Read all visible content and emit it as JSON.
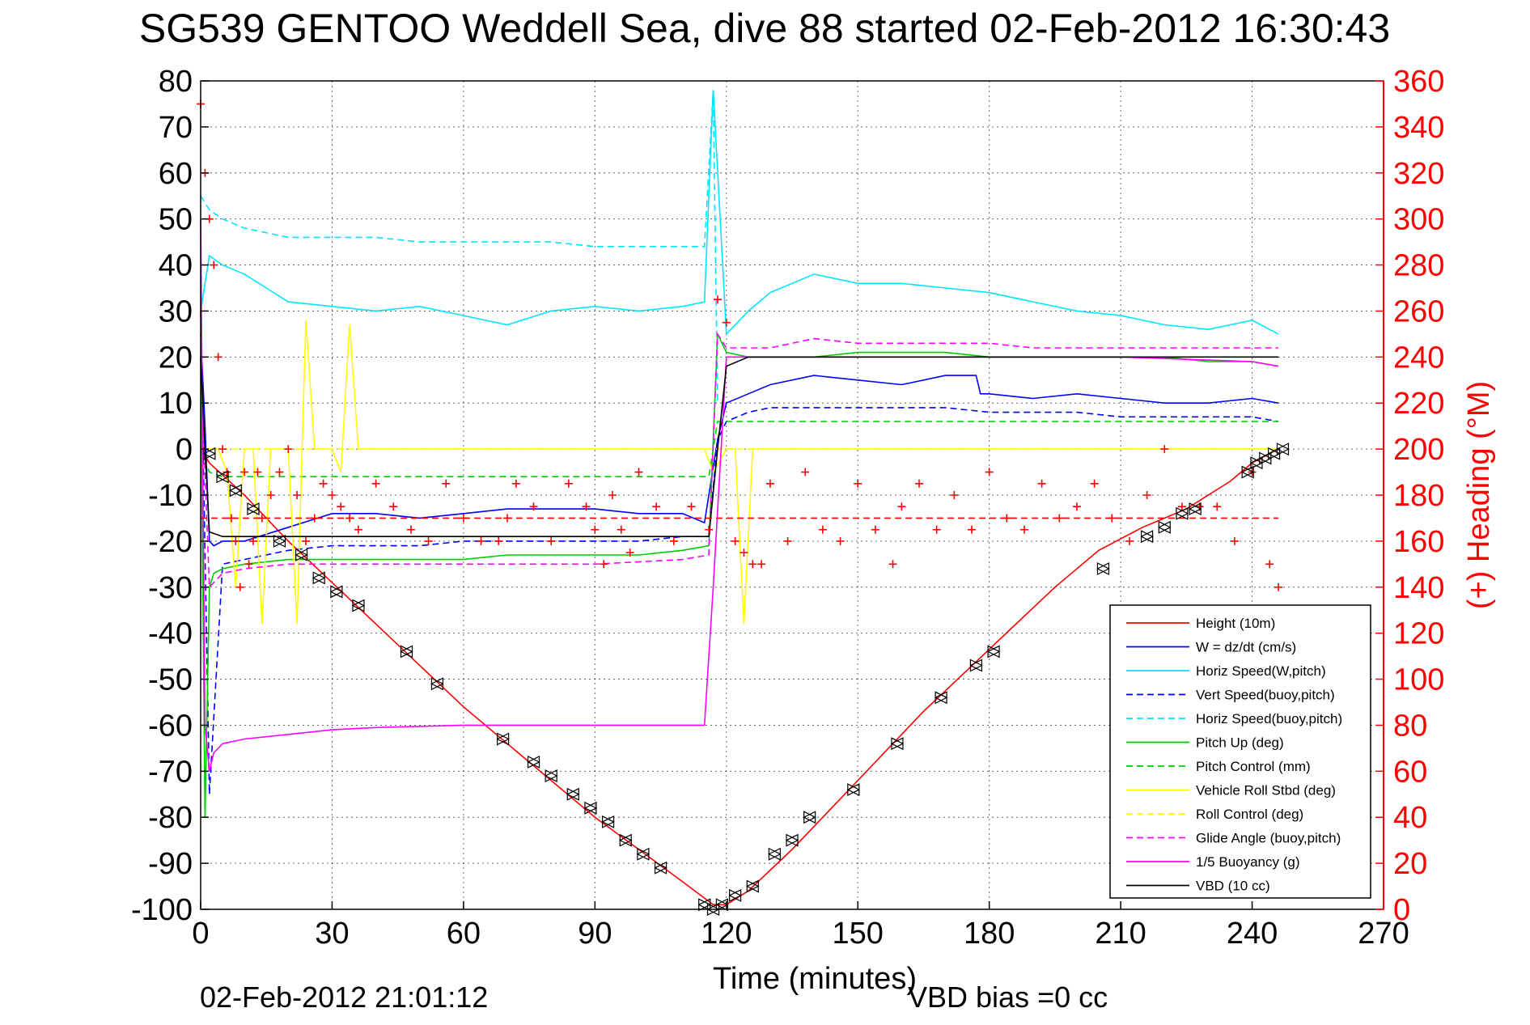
{
  "chart_data": {
    "type": "line",
    "title": "SG539 GENTOO Weddell Sea, dive 88 started 02-Feb-2012 16:30:43",
    "xlabel": "Time (minutes)",
    "ylabel_right": "(+) Heading (°M)",
    "footer_left": "02-Feb-2012 21:01:12",
    "footer_right": "VBD bias =0 cc",
    "xlim": [
      0,
      270
    ],
    "ylim": [
      -100,
      80
    ],
    "ylim_right": [
      0,
      360
    ],
    "xticks": [
      0,
      30,
      60,
      90,
      120,
      150,
      180,
      210,
      240,
      270
    ],
    "yticks": [
      -100,
      -90,
      -80,
      -70,
      -60,
      -50,
      -40,
      -30,
      -20,
      -10,
      0,
      10,
      20,
      30,
      40,
      50,
      60,
      70,
      80
    ],
    "yticks_right": [
      0,
      20,
      40,
      60,
      80,
      100,
      120,
      140,
      160,
      180,
      200,
      220,
      240,
      260,
      280,
      300,
      320,
      340,
      360
    ],
    "grid": true,
    "legend_position": "bottom-right",
    "right_axis_color": "#ff0000",
    "series": [
      {
        "name": "Height (10m)",
        "color": "#ff0000",
        "style": "solid",
        "axis": "left",
        "x": [
          0,
          2,
          10,
          20,
          30,
          40,
          50,
          60,
          70,
          80,
          90,
          100,
          110,
          117,
          120,
          125,
          135,
          145,
          155,
          165,
          175,
          185,
          195,
          205,
          215,
          225,
          235,
          240,
          246
        ],
        "y": [
          0,
          -3,
          -10,
          -20,
          -29,
          -38,
          -47,
          -56,
          -64,
          -72,
          -80,
          -87,
          -94,
          -99,
          -99,
          -96,
          -87,
          -77,
          -67,
          -57,
          -48,
          -39,
          -30,
          -22,
          -17,
          -13,
          -7,
          -3,
          0
        ]
      },
      {
        "name": "W = dz/dt (cm/s)",
        "color": "#0000ff",
        "style": "solid",
        "axis": "left",
        "x": [
          0,
          1,
          2,
          3,
          5,
          10,
          20,
          30,
          40,
          50,
          60,
          70,
          80,
          90,
          100,
          110,
          115,
          118,
          120,
          125,
          130,
          140,
          150,
          160,
          170,
          177,
          178,
          180,
          190,
          200,
          210,
          220,
          230,
          240,
          246
        ],
        "y": [
          25,
          5,
          -20,
          -21,
          -20,
          -20,
          -17,
          -14,
          -14,
          -15,
          -14,
          -13,
          -13,
          -13,
          -14,
          -14,
          -16,
          2,
          10,
          12,
          14,
          16,
          15,
          14,
          16,
          16,
          12,
          12,
          11,
          12,
          11,
          10,
          10,
          11,
          10
        ]
      },
      {
        "name": "Horiz Speed(W,pitch)",
        "color": "#00e5ff",
        "style": "solid",
        "axis": "left",
        "x": [
          0,
          2,
          5,
          10,
          15,
          20,
          30,
          40,
          50,
          60,
          70,
          80,
          90,
          100,
          110,
          115,
          117,
          120,
          125,
          130,
          140,
          150,
          160,
          170,
          180,
          190,
          200,
          210,
          220,
          230,
          240,
          246
        ],
        "y": [
          30,
          42,
          40,
          38,
          35,
          32,
          31,
          30,
          31,
          29,
          27,
          30,
          31,
          30,
          31,
          32,
          78,
          25,
          30,
          34,
          38,
          36,
          36,
          35,
          34,
          32,
          30,
          29,
          27,
          26,
          28,
          25
        ]
      },
      {
        "name": "Vert Speed(buoy,pitch)",
        "color": "#0000ff",
        "style": "dashed",
        "axis": "left",
        "x": [
          0,
          2,
          5,
          10,
          20,
          30,
          40,
          50,
          60,
          70,
          80,
          90,
          100,
          110,
          116,
          118,
          120,
          125,
          130,
          140,
          150,
          160,
          170,
          180,
          190,
          200,
          210,
          220,
          230,
          240,
          246
        ],
        "y": [
          30,
          -75,
          -25,
          -24,
          -22,
          -21,
          -21,
          -21,
          -20,
          -20,
          -20,
          -20,
          -20,
          -19,
          -19,
          2,
          6,
          8,
          9,
          9,
          9,
          9,
          9,
          8,
          8,
          8,
          7,
          7,
          7,
          7,
          6
        ]
      },
      {
        "name": "Horiz Speed(buoy,pitch)",
        "color": "#00e5ff",
        "style": "dashed",
        "axis": "left",
        "x": [
          0,
          2,
          5,
          10,
          20,
          30,
          40,
          50,
          60,
          70,
          80,
          90,
          100,
          110,
          115,
          117,
          118
        ],
        "y": [
          55,
          52,
          50,
          48,
          46,
          46,
          46,
          45,
          45,
          45,
          45,
          44,
          44,
          44,
          44,
          78,
          10
        ]
      },
      {
        "name": "Pitch Up (deg)",
        "color": "#00cc00",
        "style": "solid",
        "axis": "left",
        "x": [
          0,
          1,
          2,
          3,
          5,
          10,
          20,
          30,
          40,
          50,
          60,
          70,
          80,
          90,
          100,
          110,
          116,
          118,
          120,
          125,
          130,
          140,
          150,
          160,
          170,
          180,
          190,
          200,
          210,
          220,
          230,
          240,
          246
        ],
        "y": [
          20,
          -80,
          -30,
          -27,
          -26,
          -25,
          -24,
          -24,
          -24,
          -24,
          -24,
          -23,
          -23,
          -23,
          -23,
          -22,
          -21,
          25,
          21,
          20,
          20,
          20,
          21,
          21,
          21,
          20,
          20,
          20,
          20,
          20,
          19,
          19,
          18
        ]
      },
      {
        "name": "Pitch Control (mm)",
        "color": "#00cc00",
        "style": "dashed",
        "axis": "left",
        "x": [
          0,
          2,
          5,
          10,
          20,
          30,
          60,
          90,
          116,
          118,
          125,
          140,
          170,
          200,
          230,
          246
        ],
        "y": [
          0,
          -5,
          -6,
          -6,
          -6,
          -6,
          -6,
          -6,
          -6,
          6,
          6,
          6,
          6,
          6,
          6,
          6
        ]
      },
      {
        "name": "Vehicle Roll Stbd (deg)",
        "color": "#ffff00",
        "style": "solid",
        "axis": "left",
        "x": [
          0,
          2,
          4,
          6,
          8,
          10,
          12,
          14,
          16,
          18,
          20,
          22,
          24,
          26,
          28,
          30,
          32,
          34,
          36,
          38,
          40,
          50,
          60,
          70,
          80,
          90,
          100,
          110,
          115,
          117,
          120,
          122,
          124,
          126,
          130,
          150,
          170,
          175,
          180,
          200,
          220,
          240,
          246
        ],
        "y": [
          0,
          0,
          0,
          -5,
          -30,
          0,
          0,
          -38,
          0,
          0,
          0,
          -38,
          28,
          0,
          0,
          0,
          -5,
          27,
          0,
          0,
          0,
          0,
          0,
          0,
          0,
          0,
          0,
          0,
          0,
          -5,
          0,
          0,
          -38,
          0,
          0,
          0,
          0,
          0,
          0,
          0,
          0,
          0,
          0
        ]
      },
      {
        "name": "Roll Control (deg)",
        "color": "#ffff00",
        "style": "dashed",
        "axis": "left",
        "x": [
          0,
          20,
          40,
          60,
          80,
          100,
          117,
          120,
          140,
          160,
          180,
          200,
          220,
          240,
          246
        ],
        "y": [
          0,
          0,
          0,
          0,
          0,
          0,
          0,
          0,
          0,
          0,
          0,
          0,
          0,
          0,
          0
        ]
      },
      {
        "name": "Glide Angle (buoy,pitch)",
        "color": "#ff00ff",
        "style": "dashed",
        "axis": "left",
        "x": [
          0,
          2,
          5,
          10,
          20,
          30,
          50,
          70,
          90,
          110,
          116,
          118,
          120,
          125,
          130,
          140,
          150,
          160,
          170,
          180,
          190,
          200,
          210,
          220,
          230,
          240,
          246
        ],
        "y": [
          20,
          -30,
          -27,
          -26,
          -25,
          -25,
          -25,
          -25,
          -25,
          -24,
          -23,
          25,
          22,
          22,
          22,
          24,
          23,
          23,
          23,
          23,
          22,
          22,
          22,
          22,
          22,
          22,
          22
        ]
      },
      {
        "name": "1/5 Buoyancy (g)",
        "color": "#ff00ff",
        "style": "solid",
        "axis": "left",
        "x": [
          0,
          1,
          2,
          3,
          5,
          10,
          20,
          30,
          40,
          60,
          80,
          100,
          115,
          117,
          120,
          125,
          150,
          180,
          210,
          240,
          246
        ],
        "y": [
          50,
          -60,
          -70,
          -66,
          -64,
          -63,
          -62,
          -61,
          -60.5,
          -60,
          -60,
          -60,
          -60,
          -30,
          20,
          20,
          20,
          20,
          20,
          19,
          18
        ]
      },
      {
        "name": "VBD (10 cc)",
        "color": "#000000",
        "style": "solid",
        "axis": "left",
        "x": [
          0,
          1,
          2,
          5,
          10,
          20,
          30,
          60,
          90,
          110,
          116,
          118,
          120,
          125,
          150,
          180,
          210,
          240,
          246
        ],
        "y": [
          20,
          0,
          -18,
          -19,
          -19,
          -19,
          -19,
          -19,
          -19,
          -19,
          -19,
          0,
          18,
          20,
          20,
          20,
          20,
          20,
          20
        ]
      },
      {
        "name": "Heading (deg)",
        "color": "#ff0000",
        "style": "markers-plus",
        "axis": "right",
        "x": [
          0,
          1,
          2,
          3,
          4,
          5,
          6,
          7,
          8,
          9,
          10,
          11,
          12,
          13,
          14,
          16,
          18,
          20,
          22,
          24,
          26,
          28,
          30,
          32,
          34,
          36,
          40,
          44,
          48,
          52,
          56,
          60,
          64,
          68,
          70,
          72,
          76,
          80,
          84,
          88,
          90,
          92,
          94,
          96,
          98,
          100,
          104,
          108,
          112,
          116,
          118,
          120,
          122,
          124,
          126,
          128,
          130,
          134,
          138,
          142,
          146,
          150,
          154,
          158,
          160,
          164,
          168,
          172,
          176,
          180,
          184,
          188,
          192,
          196,
          200,
          204,
          208,
          212,
          216,
          220,
          224,
          228,
          232,
          236,
          240,
          244,
          246
        ],
        "y": [
          350,
          320,
          300,
          280,
          240,
          200,
          190,
          170,
          160,
          140,
          190,
          150,
          160,
          190,
          170,
          180,
          190,
          200,
          180,
          160,
          170,
          185,
          180,
          175,
          170,
          165,
          185,
          175,
          165,
          160,
          185,
          170,
          160,
          160,
          170,
          185,
          175,
          160,
          185,
          175,
          165,
          150,
          180,
          165,
          155,
          190,
          175,
          160,
          175,
          165,
          265,
          255,
          160,
          155,
          150,
          150,
          185,
          160,
          190,
          165,
          160,
          185,
          165,
          150,
          175,
          185,
          165,
          180,
          165,
          190,
          170,
          165,
          185,
          170,
          175,
          185,
          170,
          160,
          180,
          200,
          175,
          175,
          175,
          160,
          190,
          150,
          140
        ]
      },
      {
        "name": "Heading target",
        "color": "#ff0000",
        "style": "dashed",
        "axis": "right",
        "x": [
          0,
          246
        ],
        "y": [
          170,
          170
        ]
      },
      {
        "name": "Depth markers",
        "color": "#000000",
        "style": "markers-triangle",
        "axis": "left",
        "x": [
          2,
          5,
          8,
          12,
          18,
          23,
          27,
          31,
          36,
          47,
          54,
          69,
          76,
          80,
          85,
          89,
          93,
          97,
          101,
          105,
          115,
          117,
          119,
          122,
          126,
          131,
          135,
          139,
          149,
          159,
          169,
          177,
          181,
          206,
          216,
          220,
          224,
          227,
          239,
          241,
          243,
          245,
          247
        ],
        "y": [
          -1,
          -6,
          -9,
          -13,
          -20,
          -23,
          -28,
          -31,
          -34,
          -44,
          -51,
          -63,
          -68,
          -71,
          -75,
          -78,
          -81,
          -85,
          -88,
          -91,
          -99,
          -100,
          -99,
          -97,
          -95,
          -88,
          -85,
          -80,
          -74,
          -64,
          -54,
          -47,
          -44,
          -26,
          -19,
          -17,
          -14,
          -13,
          -5,
          -3,
          -2,
          -1,
          0
        ]
      }
    ],
    "legend": [
      {
        "label": "Height (10m)",
        "color": "#ff0000",
        "style": "solid"
      },
      {
        "label": "W = dz/dt (cm/s)",
        "color": "#0000ff",
        "style": "solid"
      },
      {
        "label": "Horiz Speed(W,pitch)",
        "color": "#00e5ff",
        "style": "solid"
      },
      {
        "label": "Vert Speed(buoy,pitch)",
        "color": "#0000ff",
        "style": "dashed"
      },
      {
        "label": "Horiz Speed(buoy,pitch)",
        "color": "#00e5ff",
        "style": "dashed"
      },
      {
        "label": "Pitch Up (deg)",
        "color": "#00cc00",
        "style": "solid"
      },
      {
        "label": "Pitch Control (mm)",
        "color": "#00cc00",
        "style": "dashed"
      },
      {
        "label": "Vehicle Roll Stbd (deg)",
        "color": "#ffff00",
        "style": "solid"
      },
      {
        "label": "Roll Control (deg)",
        "color": "#ffff00",
        "style": "dashed"
      },
      {
        "label": "Glide Angle (buoy,pitch)",
        "color": "#ff00ff",
        "style": "dashed"
      },
      {
        "label": "1/5 Buoyancy (g)",
        "color": "#ff00ff",
        "style": "solid"
      },
      {
        "label": "VBD (10 cc)",
        "color": "#000000",
        "style": "solid"
      }
    ]
  }
}
